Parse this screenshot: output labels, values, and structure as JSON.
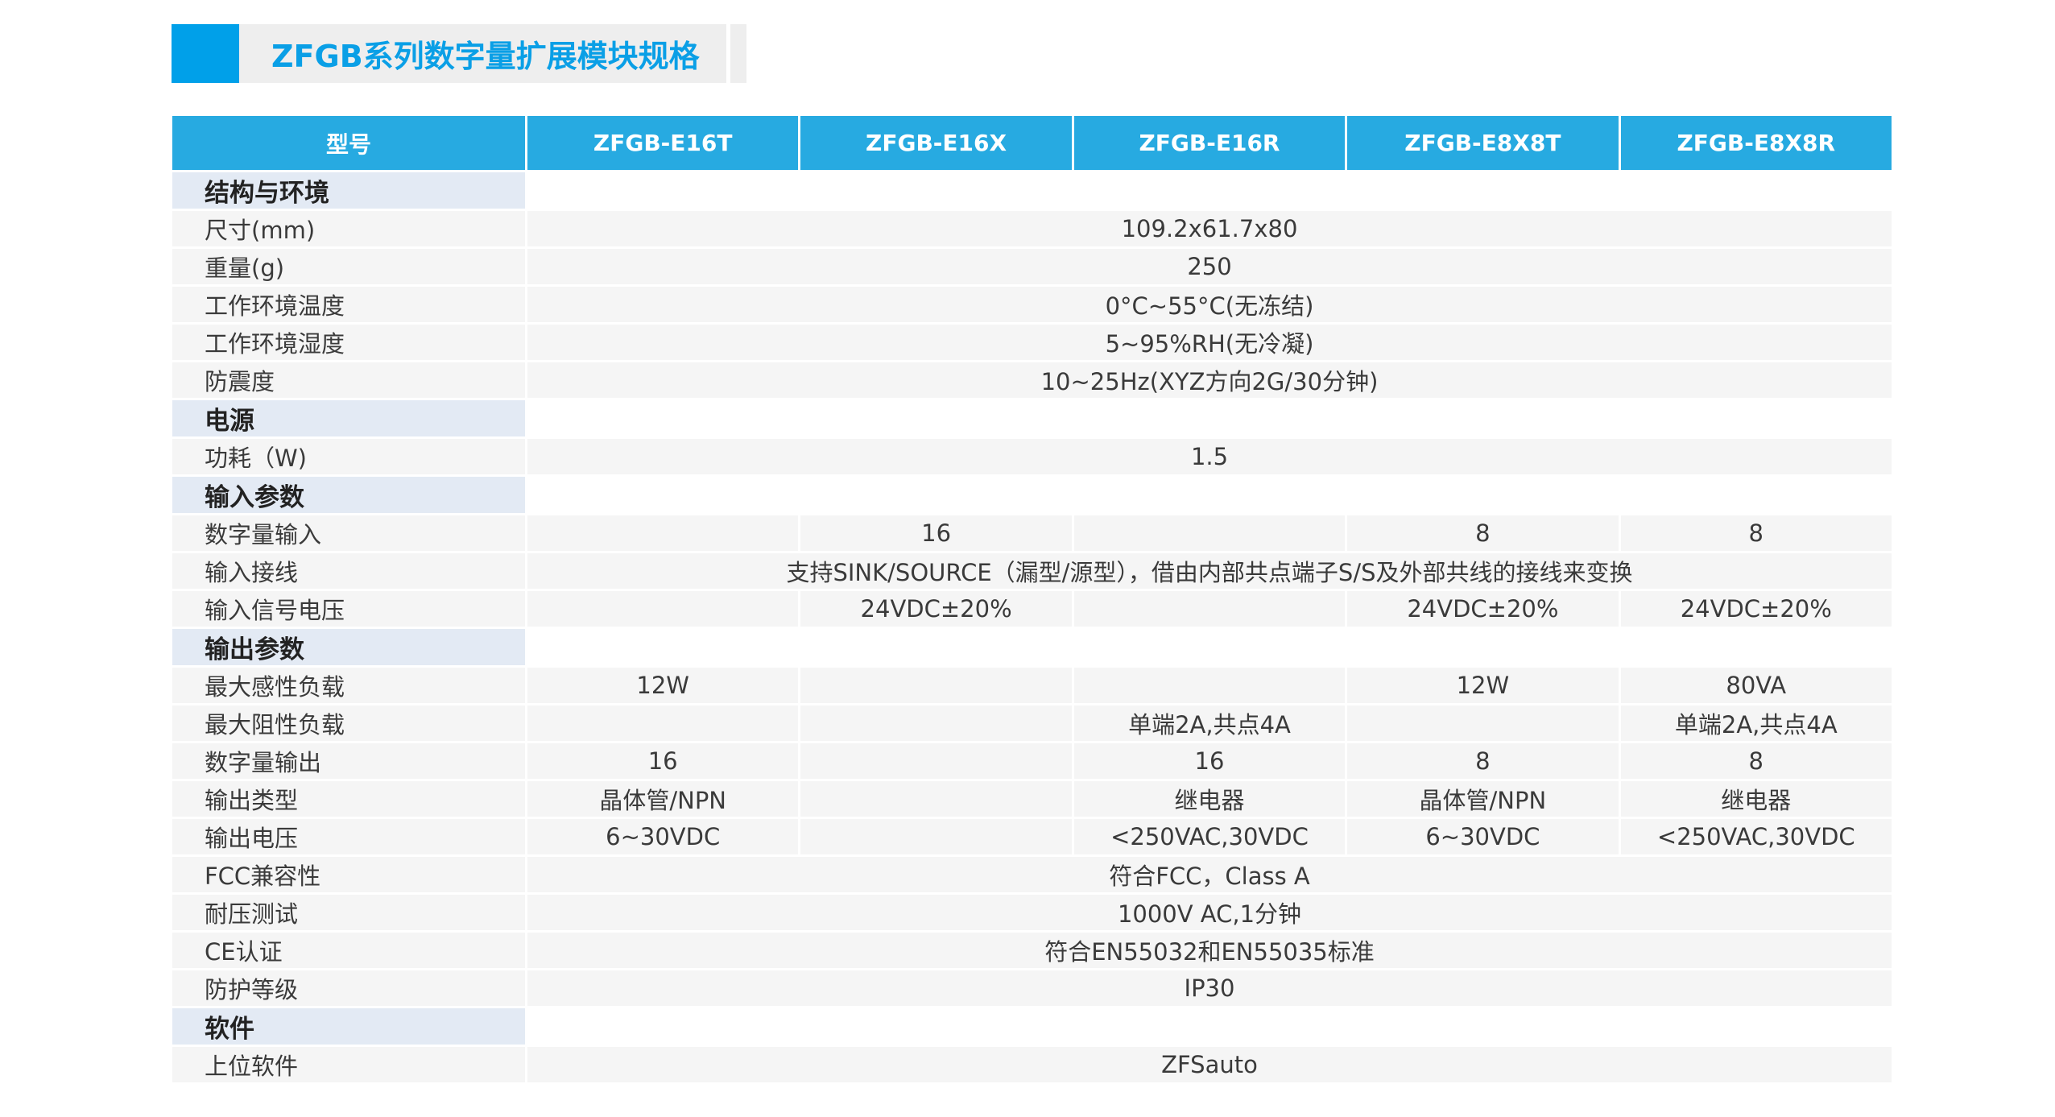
{
  "title": "ZFGB系列数字量扩展模块规格",
  "header": [
    "型号",
    "ZFGB-E16T",
    "ZFGB-E16X",
    "ZFGB-E16R",
    "ZFGB-E8X8T",
    "ZFGB-E8X8R"
  ],
  "rows": [
    {
      "section": "结构与环境"
    },
    {
      "label": "尺寸(mm)",
      "all": "109.2x61.7x80"
    },
    {
      "label": "重量(g)",
      "all": "250"
    },
    {
      "label": "工作环境温度",
      "all": "0°C~55°C(无冻结)"
    },
    {
      "label": "工作环境湿度",
      "all": "5~95%RH(无冷凝)"
    },
    {
      "label": "防震度",
      "all": "10~25Hz(XYZ方向2G/30分钟)"
    },
    {
      "section": "电源"
    },
    {
      "label": "功耗（W)",
      "all": "1.5"
    },
    {
      "section": "输入参数"
    },
    {
      "label": "数字量输入",
      "cells": [
        "",
        "16",
        "",
        "8",
        "8"
      ]
    },
    {
      "label": "输入接线",
      "all": "支持SINK/SOURCE（漏型/源型），借由内部共点端子S/S及外部共线的接线来变换"
    },
    {
      "label": "输入信号电压",
      "cells": [
        "",
        "24VDC±20%",
        "",
        "24VDC±20%",
        "24VDC±20%"
      ]
    },
    {
      "section": "输出参数"
    },
    {
      "label": "最大感性负载",
      "cells": [
        "12W",
        "",
        "",
        "12W",
        "80VA"
      ]
    },
    {
      "label": "最大阻性负载",
      "cells": [
        "",
        "",
        "单端2A,共点4A",
        "",
        "单端2A,共点4A"
      ]
    },
    {
      "label": "数字量输出",
      "cells": [
        "16",
        "",
        "16",
        "8",
        "8"
      ]
    },
    {
      "label": "输出类型",
      "cells": [
        "晶体管/NPN",
        "",
        "继电器",
        "晶体管/NPN",
        "继电器"
      ]
    },
    {
      "label": "输出电压",
      "cells": [
        "6~30VDC",
        "",
        "<250VAC,30VDC",
        "6~30VDC",
        "<250VAC,30VDC"
      ]
    },
    {
      "label": "FCC兼容性",
      "all": "符合FCC，Class A"
    },
    {
      "label": "耐压测试",
      "all": "1000V AC,1分钟"
    },
    {
      "label": "CE认证",
      "all": "符合EN55032和EN55035标准"
    },
    {
      "label": "防护等级",
      "all": "IP30"
    },
    {
      "section": "软件"
    },
    {
      "label": "上位软件",
      "all": "ZFSauto"
    }
  ]
}
